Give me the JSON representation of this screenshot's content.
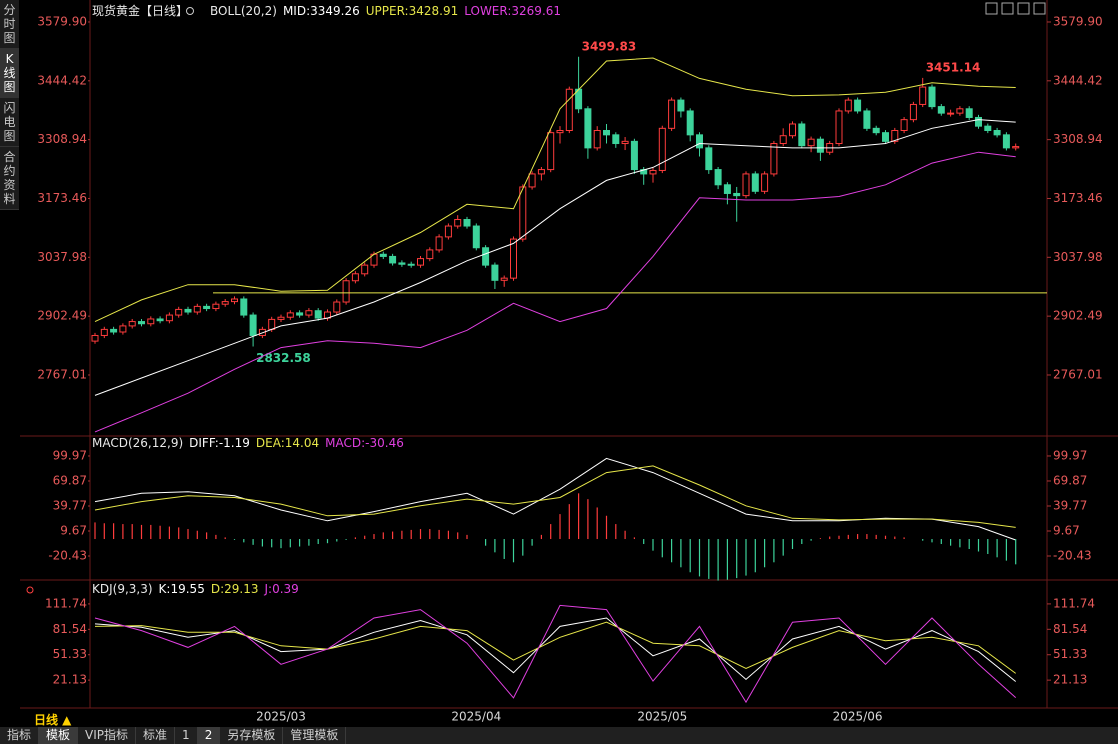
{
  "sidebar": [
    "分时图",
    "K线图",
    "闪电图",
    "合约资料"
  ],
  "footer": {
    "period": "日线 ▲",
    "tabs": [
      "指标",
      "模板",
      "VIP指标",
      "标准",
      "1",
      "2",
      "另存模板",
      "管理模板"
    ]
  },
  "chart_data": [
    {
      "type": "candlestick",
      "title": "现货黄金【日线】",
      "indicator": "BOLL(20,2)",
      "categories": [
        null,
        null,
        null,
        null,
        null,
        null,
        null,
        null,
        null,
        null,
        null,
        null,
        null,
        null,
        null,
        null,
        null,
        null,
        null,
        null,
        "2025/03",
        null,
        null,
        null,
        null,
        null,
        null,
        null,
        null,
        null,
        null,
        null,
        null,
        null,
        null,
        null,
        null,
        null,
        null,
        null,
        null,
        "2025/04",
        null,
        null,
        null,
        null,
        null,
        null,
        null,
        null,
        null,
        null,
        null,
        null,
        null,
        null,
        null,
        null,
        null,
        null,
        null,
        "2025/05",
        null,
        null,
        null,
        null,
        null,
        null,
        null,
        null,
        null,
        null,
        null,
        null,
        null,
        null,
        null,
        null,
        null,
        null,
        null,
        null,
        "2025/06",
        null,
        null,
        null,
        null,
        null,
        null,
        null,
        null,
        null,
        null,
        null,
        null,
        null,
        null,
        null,
        null,
        null
      ],
      "ohlc": [
        [
          2845,
          2864,
          2839,
          2858
        ],
        [
          2858,
          2878,
          2852,
          2872
        ],
        [
          2872,
          2878,
          2860,
          2866
        ],
        [
          2866,
          2886,
          2860,
          2880
        ],
        [
          2880,
          2896,
          2874,
          2890
        ],
        [
          2890,
          2896,
          2879,
          2885
        ],
        [
          2885,
          2902,
          2879,
          2896
        ],
        [
          2896,
          2902,
          2886,
          2892
        ],
        [
          2892,
          2911,
          2886,
          2905
        ],
        [
          2905,
          2924,
          2899,
          2918
        ],
        [
          2918,
          2924,
          2906,
          2912
        ],
        [
          2912,
          2931,
          2906,
          2925
        ],
        [
          2925,
          2931,
          2914,
          2920
        ],
        [
          2920,
          2936,
          2914,
          2930
        ],
        [
          2930,
          2942,
          2924,
          2936
        ],
        [
          2936,
          2948,
          2930,
          2942
        ],
        [
          2942,
          2948,
          2899,
          2905
        ],
        [
          2905,
          2911,
          2832.58,
          2858
        ],
        [
          2858,
          2878,
          2852,
          2872
        ],
        [
          2872,
          2901,
          2866,
          2895
        ],
        [
          2895,
          2906,
          2889,
          2900
        ],
        [
          2900,
          2916,
          2894,
          2910
        ],
        [
          2910,
          2916,
          2899,
          2905
        ],
        [
          2905,
          2921,
          2899,
          2915
        ],
        [
          2915,
          2921,
          2892,
          2898
        ],
        [
          2898,
          2918,
          2892,
          2912
        ],
        [
          2912,
          2941,
          2906,
          2935
        ],
        [
          2935,
          2990,
          2929,
          2984
        ],
        [
          2984,
          3006,
          2978,
          3000
        ],
        [
          3000,
          3026,
          2994,
          3020
        ],
        [
          3020,
          3051,
          3014,
          3045
        ],
        [
          3045,
          3051,
          3034,
          3040
        ],
        [
          3040,
          3046,
          3019,
          3025
        ],
        [
          3025,
          3031,
          3016,
          3022
        ],
        [
          3022,
          3028,
          3014,
          3020
        ],
        [
          3020,
          3041,
          3014,
          3035
        ],
        [
          3035,
          3061,
          3029,
          3055
        ],
        [
          3055,
          3091,
          3049,
          3085
        ],
        [
          3085,
          3116,
          3079,
          3110
        ],
        [
          3110,
          3135,
          3104,
          3125
        ],
        [
          3125,
          3131,
          3104,
          3110
        ],
        [
          3110,
          3116,
          3054,
          3060
        ],
        [
          3060,
          3066,
          3014,
          3020
        ],
        [
          3020,
          3026,
          2965,
          2985
        ],
        [
          2985,
          2996,
          2970,
          2990
        ],
        [
          2990,
          3086,
          2984,
          3080
        ],
        [
          3080,
          3206,
          3074,
          3200
        ],
        [
          3200,
          3236,
          3194,
          3230
        ],
        [
          3230,
          3246,
          3215,
          3240
        ],
        [
          3240,
          3331,
          3234,
          3325
        ],
        [
          3325,
          3340,
          3300,
          3330
        ],
        [
          3330,
          3431,
          3324,
          3425
        ],
        [
          3425,
          3499.83,
          3370,
          3380
        ],
        [
          3380,
          3386,
          3265,
          3290
        ],
        [
          3290,
          3340,
          3284,
          3330
        ],
        [
          3330,
          3345,
          3300,
          3320
        ],
        [
          3320,
          3326,
          3290,
          3300
        ],
        [
          3300,
          3315,
          3285,
          3305
        ],
        [
          3305,
          3311,
          3230,
          3240
        ],
        [
          3240,
          3246,
          3205,
          3230
        ],
        [
          3230,
          3244,
          3210,
          3238
        ],
        [
          3238,
          3341,
          3232,
          3335
        ],
        [
          3335,
          3406,
          3329,
          3400
        ],
        [
          3400,
          3406,
          3360,
          3375
        ],
        [
          3375,
          3381,
          3305,
          3320
        ],
        [
          3320,
          3326,
          3270,
          3290
        ],
        [
          3290,
          3296,
          3230,
          3240
        ],
        [
          3240,
          3246,
          3195,
          3205
        ],
        [
          3205,
          3211,
          3160,
          3185
        ],
        [
          3185,
          3200,
          3120,
          3180
        ],
        [
          3180,
          3236,
          3174,
          3230
        ],
        [
          3230,
          3236,
          3184,
          3190
        ],
        [
          3190,
          3236,
          3184,
          3230
        ],
        [
          3230,
          3306,
          3224,
          3300
        ],
        [
          3300,
          3335,
          3294,
          3318
        ],
        [
          3318,
          3351,
          3312,
          3345
        ],
        [
          3345,
          3351,
          3289,
          3295
        ],
        [
          3295,
          3316,
          3280,
          3310
        ],
        [
          3310,
          3316,
          3260,
          3280
        ],
        [
          3280,
          3306,
          3274,
          3300
        ],
        [
          3300,
          3381,
          3294,
          3375
        ],
        [
          3375,
          3406,
          3369,
          3400
        ],
        [
          3400,
          3406,
          3369,
          3375
        ],
        [
          3375,
          3381,
          3329,
          3335
        ],
        [
          3335,
          3341,
          3319,
          3325
        ],
        [
          3325,
          3331,
          3299,
          3305
        ],
        [
          3305,
          3336,
          3299,
          3330
        ],
        [
          3330,
          3361,
          3324,
          3355
        ],
        [
          3355,
          3396,
          3349,
          3390
        ],
        [
          3390,
          3451.14,
          3384,
          3430
        ],
        [
          3430,
          3436,
          3379,
          3385
        ],
        [
          3385,
          3391,
          3364,
          3370
        ],
        [
          3370,
          3378,
          3362,
          3370
        ],
        [
          3370,
          3386,
          3364,
          3380
        ],
        [
          3380,
          3386,
          3354,
          3360
        ],
        [
          3360,
          3366,
          3334,
          3340
        ],
        [
          3340,
          3346,
          3324,
          3330
        ],
        [
          3330,
          3336,
          3314,
          3320
        ],
        [
          3320,
          3326,
          3284,
          3290
        ],
        [
          3290,
          3300,
          3284,
          3293
        ]
      ],
      "up_color": "#ff3c3c",
      "down_color": "#3dd39b",
      "series": [
        {
          "name": "MID:",
          "color": "#ffffff",
          "x": [
            0,
            5,
            10,
            15,
            20,
            25,
            30,
            35,
            40,
            45,
            50,
            55,
            60,
            65,
            70,
            75,
            80,
            85,
            90,
            95,
            99
          ],
          "values": [
            2720,
            2760,
            2800,
            2840,
            2880,
            2898,
            2935,
            2980,
            3030,
            3070,
            3150,
            3215,
            3245,
            3300,
            3295,
            3290,
            3290,
            3300,
            3335,
            3355,
            3349.26
          ]
        },
        {
          "name": "UPPER:",
          "color": "#e6e64a",
          "x": [
            0,
            5,
            10,
            15,
            20,
            25,
            30,
            35,
            40,
            45,
            50,
            55,
            60,
            65,
            70,
            75,
            80,
            85,
            90,
            95,
            99
          ],
          "values": [
            2890,
            2940,
            2975,
            2975,
            2960,
            2962,
            3045,
            3095,
            3160,
            3150,
            3380,
            3490,
            3497,
            3450,
            3425,
            3410,
            3412,
            3418,
            3440,
            3432,
            3428.91
          ]
        },
        {
          "name": "LOWER:",
          "color": "#e040e0",
          "x": [
            0,
            5,
            10,
            15,
            20,
            25,
            30,
            35,
            40,
            45,
            50,
            55,
            60,
            65,
            70,
            75,
            80,
            85,
            90,
            95,
            99
          ],
          "values": [
            2636,
            2680,
            2725,
            2780,
            2830,
            2846,
            2840,
            2830,
            2870,
            2932,
            2890,
            2920,
            3040,
            3175,
            3170,
            3170,
            3178,
            3205,
            3255,
            3280,
            3269.61
          ]
        }
      ],
      "hline": {
        "value": 2956,
        "color": "#e6e64a"
      },
      "ylim": [
        2628.8,
        3619.0
      ],
      "yticks": [
        {
          "value": 3579.9,
          "label": "3579.90"
        },
        3444.42,
        3308.94,
        3173.46,
        3037.98,
        2902.49,
        2767.01
      ]
    },
    {
      "type": "macd",
      "title": "MACD(26,12,9)",
      "up_color": "#ff3c3c",
      "down_color": "#3dd39b",
      "series": [
        {
          "name": "DIFF:",
          "color": "#ffffff",
          "x": [
            0,
            5,
            10,
            15,
            20,
            25,
            30,
            35,
            40,
            45,
            50,
            55,
            60,
            65,
            70,
            75,
            80,
            85,
            90,
            95,
            99
          ],
          "values": [
            45,
            55,
            57,
            52,
            35,
            22,
            33,
            45,
            55,
            30,
            60,
            97,
            80,
            55,
            30,
            22,
            22,
            25,
            24,
            15,
            -1.19
          ]
        },
        {
          "name": "DEA:",
          "color": "#e6e64a",
          "x": [
            0,
            5,
            10,
            15,
            20,
            25,
            30,
            35,
            40,
            45,
            50,
            55,
            60,
            65,
            70,
            75,
            80,
            85,
            90,
            95,
            99
          ],
          "values": [
            35,
            45,
            52,
            50,
            42,
            28,
            30,
            40,
            48,
            42,
            50,
            80,
            88,
            65,
            40,
            25,
            23,
            24,
            24,
            20,
            14.04
          ]
        },
        {
          "name": "MACD:",
          "color": "#e040e0",
          "kind": "histogram",
          "values": [
            20,
            19,
            19,
            18,
            18,
            17,
            17,
            16,
            15,
            14,
            12,
            10,
            8,
            5,
            2,
            -1,
            -4,
            -7,
            -9,
            -10,
            -11,
            -10,
            -9,
            -8,
            -6,
            -5,
            -3,
            -1,
            2,
            4,
            6,
            8,
            9,
            10,
            11,
            12,
            12,
            11,
            10,
            8,
            5,
            0,
            -8,
            -16,
            -24,
            -28,
            -20,
            -8,
            5,
            18,
            30,
            42,
            55,
            48,
            38,
            28,
            18,
            10,
            2,
            -6,
            -14,
            -22,
            -28,
            -34,
            -40,
            -45,
            -48,
            -50,
            -49,
            -47,
            -44,
            -40,
            -34,
            -28,
            -20,
            -12,
            -6,
            -2,
            1,
            3,
            4,
            5,
            6,
            6,
            5,
            4,
            3,
            2,
            0,
            -2,
            -4,
            -6,
            -8,
            -10,
            -12,
            -15,
            -18,
            -22,
            -26,
            -30.46
          ]
        }
      ],
      "ylim": [
        -46.9,
        122.8
      ],
      "yticks": [
        99.97,
        69.87,
        39.77,
        9.67,
        -20.43
      ]
    },
    {
      "type": "kdj",
      "title": "KDJ(9,3,3)",
      "series": [
        {
          "name": "K:",
          "color": "#ffffff",
          "x": [
            0,
            5,
            10,
            15,
            20,
            25,
            30,
            35,
            40,
            45,
            50,
            55,
            60,
            65,
            70,
            75,
            80,
            85,
            90,
            95,
            99
          ],
          "values": [
            88,
            84,
            72,
            80,
            55,
            58,
            78,
            92,
            75,
            30,
            85,
            95,
            50,
            70,
            22,
            70,
            85,
            58,
            80,
            55,
            19.55
          ]
        },
        {
          "name": "D:",
          "color": "#e6e64a",
          "x": [
            0,
            5,
            10,
            15,
            20,
            25,
            30,
            35,
            40,
            45,
            50,
            55,
            60,
            65,
            70,
            75,
            80,
            85,
            90,
            95,
            99
          ],
          "values": [
            85,
            86,
            78,
            78,
            62,
            58,
            70,
            85,
            80,
            45,
            72,
            90,
            65,
            62,
            35,
            60,
            80,
            68,
            72,
            62,
            29.13
          ]
        },
        {
          "name": "J:",
          "color": "#e040e0",
          "x": [
            0,
            5,
            10,
            15,
            20,
            25,
            30,
            35,
            40,
            45,
            50,
            55,
            60,
            65,
            70,
            75,
            80,
            85,
            90,
            95,
            99
          ],
          "values": [
            95,
            80,
            60,
            85,
            40,
            58,
            95,
            105,
            65,
            0,
            110,
            105,
            20,
            85,
            -5,
            90,
            95,
            40,
            95,
            40,
            0.39
          ]
        }
      ],
      "ylim": [
        -12,
        136.6
      ],
      "yticks": [
        111.74,
        81.54,
        51.33,
        21.13
      ]
    }
  ]
}
